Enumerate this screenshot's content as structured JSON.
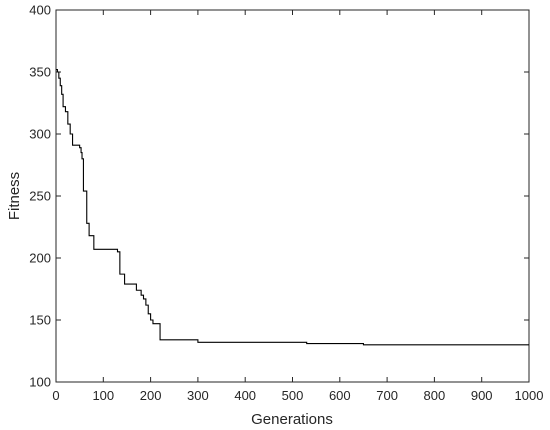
{
  "chart_data": {
    "type": "line",
    "title": "",
    "xlabel": "Generations",
    "ylabel": "Fitness",
    "xlim": [
      0,
      1000
    ],
    "ylim": [
      100,
      400
    ],
    "xticks": [
      0,
      100,
      200,
      300,
      400,
      500,
      600,
      700,
      800,
      900,
      1000
    ],
    "yticks": [
      100,
      150,
      200,
      250,
      300,
      350,
      400
    ],
    "grid": false,
    "legend": "none",
    "line_color": "#000000",
    "series": [
      {
        "name": "",
        "step": true,
        "x": [
          0,
          3,
          6,
          9,
          12,
          15,
          20,
          25,
          30,
          35,
          40,
          45,
          50,
          53,
          55,
          58,
          60,
          65,
          70,
          75,
          80,
          90,
          110,
          130,
          135,
          140,
          145,
          150,
          165,
          170,
          175,
          180,
          185,
          190,
          195,
          200,
          205,
          210,
          215,
          220,
          235,
          300,
          400,
          530,
          600,
          650,
          700,
          800,
          900,
          1000
        ],
        "y": [
          352,
          350,
          345,
          339,
          332,
          322,
          318,
          308,
          300,
          291,
          291,
          291,
          289,
          285,
          280,
          254,
          254,
          228,
          218,
          218,
          207,
          207,
          207,
          205,
          187,
          187,
          179,
          179,
          179,
          174,
          174,
          170,
          167,
          162,
          155,
          150,
          147,
          147,
          147,
          134,
          134,
          132,
          132,
          131,
          131,
          130,
          130,
          130,
          130,
          130
        ]
      }
    ]
  }
}
